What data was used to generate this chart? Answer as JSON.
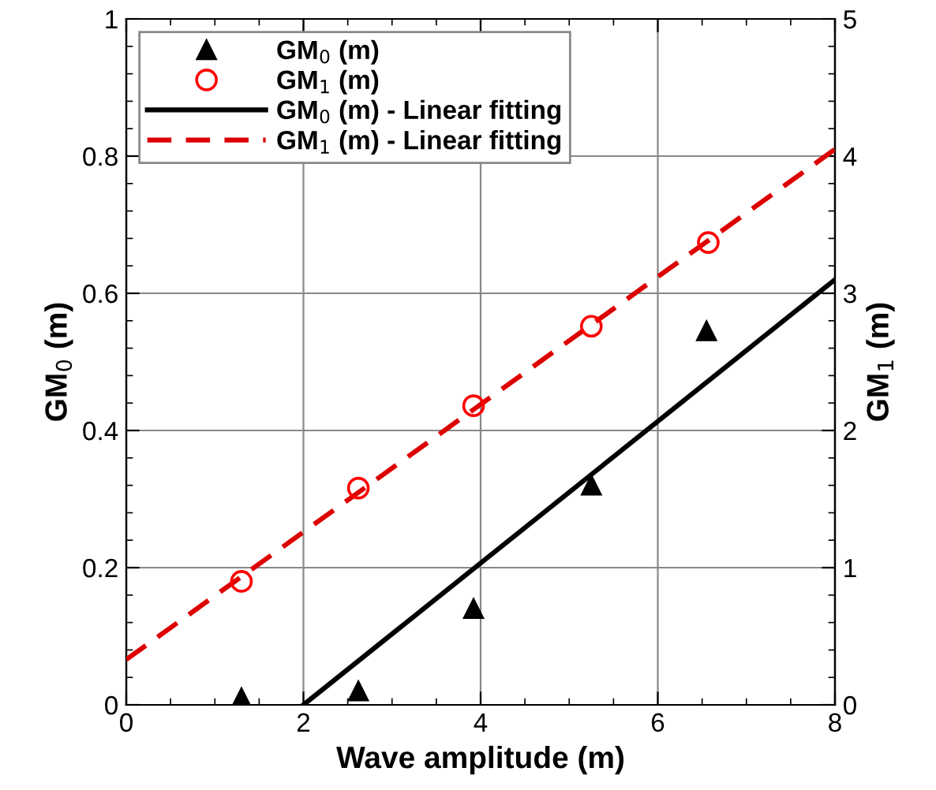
{
  "chart_data": {
    "type": "scatter",
    "xlabel": "Wave amplitude (m)",
    "ylabel": "GM$_{0}$ (m)",
    "y2label": "GM$_{1}$ (m)",
    "xlim": [
      0,
      8
    ],
    "xticks": [
      0,
      2,
      4,
      6,
      8
    ],
    "ylim": [
      0,
      1
    ],
    "yticks": [
      0,
      0.2,
      0.4,
      0.6,
      0.8,
      1
    ],
    "y2lim": [
      0,
      5
    ],
    "y2ticks": [
      0,
      1,
      2,
      3,
      4,
      5
    ],
    "grid": true,
    "legend": "top left",
    "series": [
      {
        "name": "GM$_{0}$ (m)",
        "marker": "triangle",
        "color": "#000000",
        "x": [
          1.3,
          2.62,
          3.92,
          5.25,
          6.55
        ],
        "values": [
          0.01,
          0.02,
          0.14,
          0.32,
          0.545
        ]
      },
      {
        "name": "GM$_{1}$ (m)",
        "marker": "circle",
        "color": "#ff0000",
        "axis": "y2",
        "x": [
          1.3,
          2.62,
          3.92,
          5.25,
          6.57
        ],
        "values": [
          0.9,
          1.58,
          2.18,
          2.76,
          3.37
        ]
      },
      {
        "name": "GM$_{0}$ (m) - Linear fitting",
        "type": "line",
        "line_style": "solid",
        "color": "#000000",
        "x": [
          2,
          8
        ],
        "values": [
          0,
          0.62
        ]
      },
      {
        "name": "GM$_{1}$ (m) - Linear fitting",
        "type": "line",
        "line_style": "dashed",
        "color": "#dd0000",
        "axis": "y2",
        "x": [
          0,
          8
        ],
        "values": [
          0.33,
          4.05
        ]
      }
    ]
  }
}
